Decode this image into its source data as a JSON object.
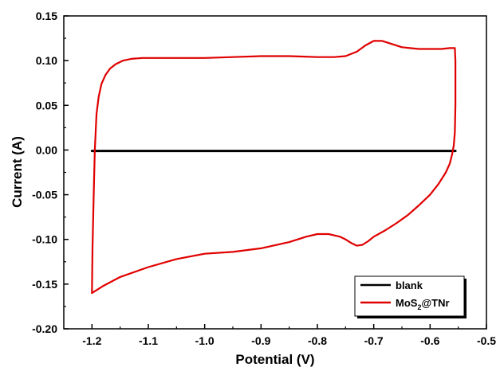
{
  "chart_data": {
    "type": "line",
    "title": "",
    "xlabel": "Potential (V)",
    "ylabel": "Current (A)",
    "xlim": [
      -1.25,
      -0.5
    ],
    "ylim": [
      -0.2,
      0.15
    ],
    "x_ticks": [
      -1.2,
      -1.1,
      -1.0,
      -0.9,
      -0.8,
      -0.7,
      -0.6,
      -0.5
    ],
    "x_tick_labels": [
      "-1.2",
      "-1.1",
      "-1.0",
      "-0.9",
      "-0.8",
      "-0.7",
      "-0.6",
      "-0.5"
    ],
    "y_ticks": [
      -0.2,
      -0.15,
      -0.1,
      -0.05,
      0.0,
      0.05,
      0.1,
      0.15
    ],
    "y_tick_labels": [
      "-0.20",
      "-0.15",
      "-0.10",
      "-0.05",
      "0.00",
      "0.05",
      "0.10",
      "0.15"
    ],
    "grid": false,
    "legend_position": "bottom-right",
    "series": [
      {
        "name": "blank",
        "color": "#000000",
        "x": [
          -1.2,
          -1.1,
          -1.0,
          -0.9,
          -0.8,
          -0.7,
          -0.6,
          -0.555
        ],
        "y": [
          -0.001,
          -0.001,
          -0.001,
          -0.001,
          -0.001,
          -0.001,
          -0.001,
          -0.001
        ]
      },
      {
        "name": "MoS2@TNr",
        "color": "#e00000",
        "x": [
          -1.2,
          -1.199,
          -1.197,
          -1.195,
          -1.192,
          -1.188,
          -1.183,
          -1.176,
          -1.168,
          -1.158,
          -1.145,
          -1.13,
          -1.11,
          -1.08,
          -1.05,
          -1.0,
          -0.95,
          -0.9,
          -0.85,
          -0.8,
          -0.77,
          -0.75,
          -0.73,
          -0.715,
          -0.7,
          -0.685,
          -0.67,
          -0.65,
          -0.62,
          -0.6,
          -0.58,
          -0.565,
          -0.556,
          -0.555,
          -0.555,
          -0.556,
          -0.558,
          -0.561,
          -0.565,
          -0.572,
          -0.585,
          -0.6,
          -0.62,
          -0.64,
          -0.66,
          -0.68,
          -0.7,
          -0.71,
          -0.72,
          -0.73,
          -0.74,
          -0.75,
          -0.76,
          -0.78,
          -0.8,
          -0.82,
          -0.85,
          -0.9,
          -0.95,
          -1.0,
          -1.05,
          -1.1,
          -1.15,
          -1.18,
          -1.2,
          -1.2
        ],
        "y": [
          -0.16,
          -0.11,
          -0.05,
          0.0,
          0.04,
          0.06,
          0.074,
          0.084,
          0.091,
          0.096,
          0.1,
          0.102,
          0.103,
          0.103,
          0.103,
          0.103,
          0.104,
          0.105,
          0.105,
          0.104,
          0.104,
          0.105,
          0.11,
          0.117,
          0.122,
          0.122,
          0.119,
          0.115,
          0.113,
          0.113,
          0.113,
          0.114,
          0.114,
          0.1,
          0.05,
          0.02,
          0.005,
          -0.005,
          -0.015,
          -0.025,
          -0.038,
          -0.05,
          -0.062,
          -0.073,
          -0.082,
          -0.09,
          -0.097,
          -0.102,
          -0.106,
          -0.107,
          -0.104,
          -0.1,
          -0.097,
          -0.094,
          -0.094,
          -0.097,
          -0.103,
          -0.11,
          -0.114,
          -0.116,
          -0.122,
          -0.131,
          -0.142,
          -0.152,
          -0.16,
          -0.16
        ]
      }
    ]
  },
  "legend": [
    {
      "label": "blank",
      "color": "#000000"
    },
    {
      "label_main": "MoS",
      "label_sub": "2",
      "label_tail": "@TNr",
      "color": "#e00000"
    }
  ]
}
